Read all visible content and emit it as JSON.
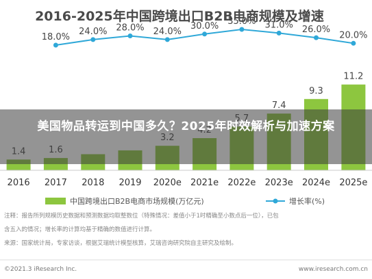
{
  "chart_data": {
    "type": "bar",
    "title": "2016-2025年中国跨境出口B2B电商规模及增速",
    "categories": [
      "2016",
      "2017",
      "2018",
      "2019",
      "2020e",
      "2021e",
      "2022e",
      "2023e",
      "2024e",
      "2025e"
    ],
    "series": [
      {
        "name": "中国跨境出口B2B电商市场规模(万亿元)",
        "type": "bar",
        "values": [
          1.4,
          1.6,
          2.1,
          2.6,
          3.2,
          4.2,
          5.7,
          7.4,
          9.3,
          11.2
        ],
        "labels": [
          "1.4",
          "1.6",
          "",
          "",
          "3.2",
          "4.2",
          "5.7",
          "7.4",
          "9.3",
          "11.2"
        ],
        "color": "#8dc63f"
      },
      {
        "name": "增长率(%)",
        "type": "line",
        "values": [
          null,
          18.0,
          24.0,
          28.0,
          24.0,
          30.0,
          35.0,
          31.0,
          26.0,
          20.0
        ],
        "labels": [
          "",
          "18.0%",
          "24.0%",
          "28.0%",
          "24.0%",
          "30.0%",
          "35.0%",
          "31.0%",
          "26.0%",
          "20.0%"
        ],
        "color": "#2fa8d8"
      }
    ],
    "legend": "bottom",
    "grid": false
  },
  "notes": {
    "line1": "注释：报告所列规模历史数据和预测数据均取整数位（特殊情况：差值小于1时精确至小数点后一位），已包",
    "line2": "含五入的情况；增长率的计算均基于精确的数值进行计算。",
    "line3": "来源：国家统计局，专家访谈，根据艾瑞统计模型核算，艾瑞咨询研究院自主研究及绘制。"
  },
  "footer": {
    "left": "©2021.3 iResearch Inc.",
    "right": "www.iresearch.com.cn"
  },
  "overlay": {
    "title": "美国物品转运到中国多久？2025年时效解析与加速方案"
  }
}
